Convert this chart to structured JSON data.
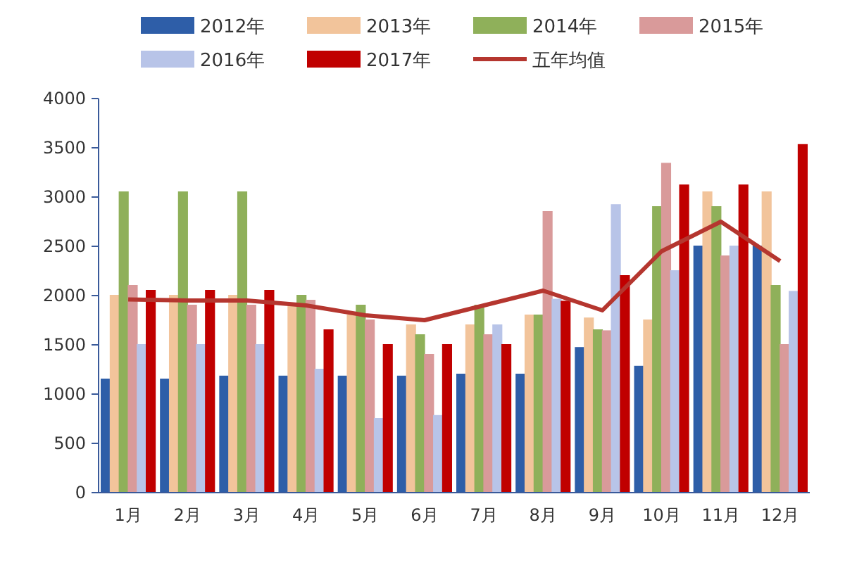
{
  "chart_data": {
    "type": "bar",
    "categories": [
      "1月",
      "2月",
      "3月",
      "4月",
      "5月",
      "6月",
      "7月",
      "8月",
      "9月",
      "10月",
      "11月",
      "12月"
    ],
    "series": [
      {
        "name": "2012年",
        "color": "#2e5ea8",
        "values": [
          1150,
          1150,
          1180,
          1180,
          1180,
          1180,
          1200,
          1200,
          1470,
          1280,
          2500,
          2500
        ]
      },
      {
        "name": "2013年",
        "color": "#f2c49b",
        "values": [
          2000,
          2000,
          2000,
          1900,
          1800,
          1700,
          1700,
          1800,
          1770,
          1750,
          3050,
          3050
        ]
      },
      {
        "name": "2014年",
        "color": "#8fb05a",
        "values": [
          3050,
          3050,
          3050,
          2000,
          1900,
          1600,
          1900,
          1800,
          1650,
          2900,
          2900,
          2100
        ]
      },
      {
        "name": "2015年",
        "color": "#d99a9a",
        "values": [
          2100,
          1900,
          1900,
          1950,
          1750,
          1400,
          1600,
          2850,
          1640,
          3340,
          2400,
          1500
        ]
      },
      {
        "name": "2016年",
        "color": "#b8c4e8",
        "values": [
          1500,
          1500,
          1500,
          1250,
          750,
          780,
          1700,
          1960,
          2920,
          2250,
          2500,
          2040
        ]
      },
      {
        "name": "2017年",
        "color": "#c00000",
        "values": [
          2050,
          2050,
          2050,
          1650,
          1500,
          1500,
          1500,
          1940,
          2200,
          3120,
          3120,
          3530
        ]
      },
      {
        "name": "五年均值",
        "type": "line",
        "color": "#b5362f",
        "values": [
          1960,
          1950,
          1950,
          1900,
          1800,
          1750,
          1900,
          2050,
          1850,
          2450,
          2750,
          2350
        ]
      }
    ],
    "ylim": [
      0,
      4000
    ],
    "yticks": [
      0,
      500,
      1000,
      1500,
      2000,
      2500,
      3000,
      3500,
      4000
    ],
    "legend": "top",
    "grid": false
  }
}
